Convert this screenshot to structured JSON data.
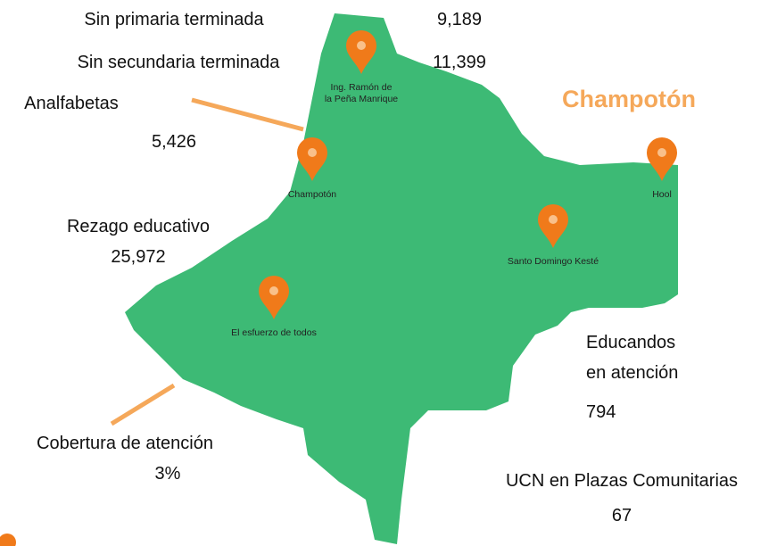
{
  "title": "Champotón",
  "stats": [
    {
      "label": "Sin primaria terminada",
      "value": "9,189"
    },
    {
      "label": "Sin secundaria terminada",
      "value": "11,399"
    },
    {
      "label": "Analfabetas",
      "value": "5,426"
    },
    {
      "label": "Rezago educativo",
      "value": "25,972"
    },
    {
      "label": "Cobertura de atención",
      "value": "3%"
    },
    {
      "label": [
        "Educandos",
        "en atención"
      ],
      "value": "794"
    },
    {
      "label": "UCN en Plazas Comunitarias",
      "value": "67"
    }
  ],
  "places": [
    {
      "name": [
        "Ing. Ramón de",
        "la Peña Manrique"
      ]
    },
    {
      "name": [
        "Champotón"
      ]
    },
    {
      "name": [
        "Hool"
      ]
    },
    {
      "name": [
        "Santo Domingo Kesté"
      ]
    },
    {
      "name": [
        "El esfuerzo de todos"
      ]
    }
  ]
}
